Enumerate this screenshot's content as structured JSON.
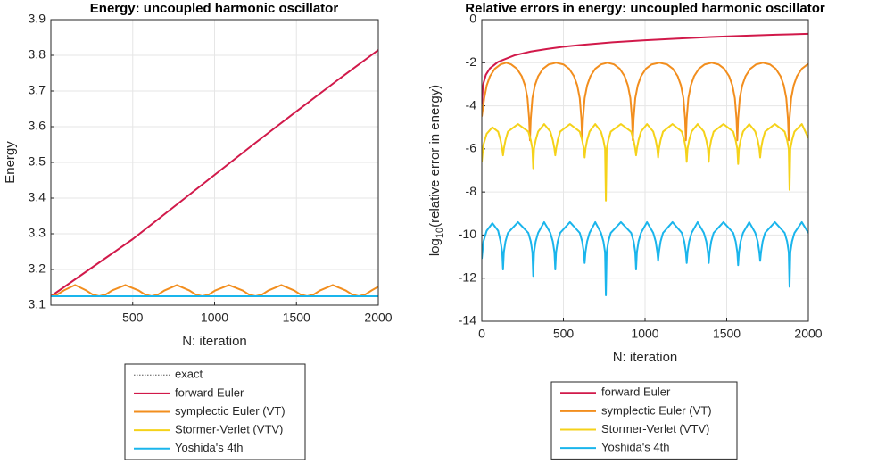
{
  "chart_data": [
    {
      "type": "line",
      "title": "Energy: uncoupled harmonic oscillator",
      "xlabel": "N: iteration",
      "ylabel": "Energy",
      "xlim": [
        0,
        2000
      ],
      "xticks": [
        500,
        1000,
        1500,
        2000
      ],
      "ylim": [
        3.1,
        3.9
      ],
      "yticks": [
        3.1,
        3.2,
        3.3,
        3.4,
        3.5,
        3.6,
        3.7,
        3.8,
        3.9
      ],
      "grid": true,
      "series": [
        {
          "name": "exact",
          "color": "#555555",
          "linestyle": "dotted",
          "x": [
            0,
            2000
          ],
          "values": [
            3.125,
            3.125
          ]
        },
        {
          "name": "forward Euler",
          "color": "#d1194a",
          "x": [
            0,
            250,
            500,
            750,
            1000,
            1250,
            1500,
            1750,
            2000
          ],
          "values": [
            3.125,
            3.205,
            3.285,
            3.375,
            3.465,
            3.555,
            3.643,
            3.73,
            3.815
          ]
        },
        {
          "name": "symplectic Euler (VT)",
          "color": "#f28e1e",
          "x": [
            0,
            40,
            80,
            148,
            215,
            255,
            295,
            335,
            375,
            455,
            535,
            575,
            615,
            655,
            695,
            770,
            845,
            885,
            925,
            965,
            1005,
            1088,
            1170,
            1210,
            1250,
            1290,
            1330,
            1408,
            1485,
            1525,
            1565,
            1605,
            1645,
            1722,
            1800,
            1840,
            1880,
            1920,
            1960,
            2000
          ],
          "values": [
            3.125,
            3.1298,
            3.1415,
            3.1565,
            3.1415,
            3.1298,
            3.125,
            3.1298,
            3.1415,
            3.1565,
            3.1415,
            3.1298,
            3.125,
            3.1298,
            3.1415,
            3.1565,
            3.1415,
            3.1298,
            3.125,
            3.1298,
            3.1415,
            3.1565,
            3.1415,
            3.1298,
            3.125,
            3.1298,
            3.1415,
            3.1565,
            3.1415,
            3.1298,
            3.125,
            3.1298,
            3.1415,
            3.1565,
            3.1415,
            3.1298,
            3.125,
            3.1298,
            3.1415,
            3.152
          ]
        },
        {
          "name": "Stormer-Verlet (VTV)",
          "color": "#f5d21a",
          "x": [
            0,
            2000
          ],
          "values": [
            3.125,
            3.125
          ]
        },
        {
          "name": "Yoshida's 4th",
          "color": "#1ab5ec",
          "x": [
            0,
            2000
          ],
          "values": [
            3.125,
            3.125
          ]
        }
      ]
    },
    {
      "type": "line",
      "title": "Relative errors in energy: uncoupled harmonic oscillator",
      "xlabel": "N: iteration",
      "ylabel": [
        "log",
        "10",
        "(relative error in energy)"
      ],
      "xlim": [
        0,
        2000
      ],
      "xticks": [
        0,
        500,
        1000,
        1500,
        2000
      ],
      "ylim": [
        -14,
        0
      ],
      "yticks": [
        -14,
        -12,
        -10,
        -8,
        -6,
        -4,
        -2,
        0
      ],
      "grid": true,
      "series": [
        {
          "name": "forward Euler",
          "color": "#d1194a",
          "x": [
            1,
            5,
            10,
            25,
            50,
            100,
            200,
            300,
            400,
            500,
            600,
            800,
            1000,
            1200,
            1400,
            1600,
            1800,
            2000
          ],
          "values": [
            -3.96,
            -3.26,
            -2.96,
            -2.56,
            -2.26,
            -1.96,
            -1.66,
            -1.48,
            -1.36,
            -1.26,
            -1.18,
            -1.05,
            -0.96,
            -0.88,
            -0.81,
            -0.75,
            -0.7,
            -0.66
          ]
        },
        {
          "name": "symplectic Euler (VT)",
          "color": "#f28e1e",
          "x": [
            0,
            15,
            30,
            50,
            80,
            115,
            150,
            180,
            215,
            245,
            265,
            280,
            290,
            295,
            300,
            310,
            325,
            345,
            375,
            410,
            455,
            500,
            535,
            565,
            585,
            600,
            610,
            615,
            620,
            630,
            645,
            665,
            695,
            730,
            770,
            810,
            845,
            875,
            895,
            910,
            920,
            925,
            930,
            940,
            955,
            975,
            1005,
            1040,
            1088,
            1135,
            1170,
            1200,
            1220,
            1235,
            1245,
            1250,
            1255,
            1265,
            1280,
            1300,
            1330,
            1365,
            1408,
            1450,
            1485,
            1515,
            1535,
            1550,
            1560,
            1565,
            1570,
            1580,
            1595,
            1615,
            1645,
            1680,
            1722,
            1765,
            1800,
            1830,
            1850,
            1865,
            1875,
            1880,
            1885,
            1895,
            1910,
            1930,
            1960,
            1995,
            2000
          ],
          "values": [
            -4.5,
            -3.65,
            -3.06,
            -2.63,
            -2.28,
            -2.08,
            -2.0,
            -2.08,
            -2.28,
            -2.63,
            -3.06,
            -3.65,
            -4.6,
            -5.6,
            -4.6,
            -3.65,
            -3.06,
            -2.63,
            -2.28,
            -2.08,
            -2.0,
            -2.08,
            -2.28,
            -2.63,
            -3.06,
            -3.65,
            -4.6,
            -5.6,
            -4.6,
            -3.65,
            -3.06,
            -2.63,
            -2.28,
            -2.08,
            -2.0,
            -2.08,
            -2.28,
            -2.63,
            -3.06,
            -3.65,
            -4.6,
            -5.6,
            -4.6,
            -3.65,
            -3.06,
            -2.63,
            -2.28,
            -2.08,
            -2.0,
            -2.08,
            -2.28,
            -2.63,
            -3.06,
            -3.65,
            -4.6,
            -5.6,
            -4.6,
            -3.65,
            -3.06,
            -2.63,
            -2.28,
            -2.08,
            -2.0,
            -2.08,
            -2.28,
            -2.63,
            -3.06,
            -3.65,
            -4.6,
            -5.6,
            -4.6,
            -3.65,
            -3.06,
            -2.63,
            -2.28,
            -2.08,
            -2.0,
            -2.08,
            -2.28,
            -2.63,
            -3.06,
            -3.65,
            -4.6,
            -5.6,
            -4.6,
            -3.65,
            -3.06,
            -2.63,
            -2.28,
            -2.08,
            -2.06
          ]
        },
        {
          "name": "Stormer-Verlet (VTV)",
          "color": "#f5d21a",
          "x": [
            0,
            10,
            30,
            65,
            100,
            115,
            125,
            130,
            135,
            145,
            160,
            222,
            285,
            300,
            310,
            315,
            320,
            330,
            345,
            382,
            420,
            435,
            445,
            450,
            455,
            465,
            480,
            540,
            600,
            615,
            625,
            630,
            635,
            645,
            660,
            695,
            730,
            745,
            755,
            760,
            765,
            775,
            790,
            852,
            915,
            930,
            940,
            945,
            950,
            960,
            975,
            1012,
            1050,
            1065,
            1075,
            1080,
            1085,
            1095,
            1110,
            1168,
            1225,
            1240,
            1250,
            1255,
            1260,
            1270,
            1285,
            1322,
            1360,
            1375,
            1385,
            1390,
            1395,
            1405,
            1420,
            1480,
            1540,
            1555,
            1565,
            1570,
            1575,
            1585,
            1600,
            1638,
            1675,
            1690,
            1700,
            1705,
            1710,
            1720,
            1735,
            1795,
            1855,
            1870,
            1880,
            1885,
            1890,
            1900,
            1915,
            1960,
            2000
          ],
          "values": [
            -6.6,
            -5.8,
            -5.3,
            -5.0,
            -5.2,
            -5.6,
            -6.0,
            -6.3,
            -6.0,
            -5.6,
            -5.2,
            -4.85,
            -5.2,
            -5.6,
            -6.0,
            -6.9,
            -6.0,
            -5.6,
            -5.2,
            -4.85,
            -5.2,
            -5.6,
            -6.0,
            -6.3,
            -6.0,
            -5.6,
            -5.2,
            -4.85,
            -5.2,
            -5.6,
            -6.0,
            -6.4,
            -6.0,
            -5.6,
            -5.2,
            -4.85,
            -5.2,
            -5.6,
            -6.0,
            -8.4,
            -6.0,
            -5.6,
            -5.2,
            -4.85,
            -5.2,
            -5.6,
            -6.0,
            -6.3,
            -6.0,
            -5.6,
            -5.2,
            -4.85,
            -5.2,
            -5.6,
            -6.0,
            -6.4,
            -6.0,
            -5.6,
            -5.2,
            -4.85,
            -5.2,
            -5.6,
            -6.0,
            -6.6,
            -6.0,
            -5.6,
            -5.2,
            -4.85,
            -5.2,
            -5.6,
            -6.0,
            -6.6,
            -6.0,
            -5.6,
            -5.2,
            -4.85,
            -5.2,
            -5.6,
            -6.0,
            -6.7,
            -6.0,
            -5.6,
            -5.2,
            -4.85,
            -5.2,
            -5.6,
            -6.0,
            -6.4,
            -6.0,
            -5.6,
            -5.2,
            -4.85,
            -5.2,
            -5.6,
            -6.0,
            -7.9,
            -6.0,
            -5.6,
            -5.2,
            -4.85,
            -5.5
          ]
        },
        {
          "name": "Yoshida's 4th",
          "color": "#1ab5ec",
          "x": [
            0,
            10,
            30,
            65,
            100,
            115,
            125,
            130,
            135,
            145,
            160,
            222,
            285,
            300,
            310,
            315,
            320,
            330,
            345,
            382,
            420,
            435,
            445,
            450,
            455,
            465,
            480,
            540,
            600,
            615,
            625,
            630,
            635,
            645,
            660,
            695,
            730,
            745,
            755,
            760,
            765,
            775,
            790,
            852,
            915,
            930,
            940,
            945,
            950,
            960,
            975,
            1012,
            1050,
            1065,
            1075,
            1080,
            1085,
            1095,
            1110,
            1168,
            1225,
            1240,
            1250,
            1255,
            1260,
            1270,
            1285,
            1322,
            1360,
            1375,
            1385,
            1390,
            1395,
            1405,
            1420,
            1480,
            1540,
            1555,
            1565,
            1570,
            1575,
            1585,
            1600,
            1638,
            1675,
            1690,
            1700,
            1705,
            1710,
            1720,
            1735,
            1795,
            1855,
            1870,
            1880,
            1885,
            1890,
            1900,
            1915,
            1960,
            2000
          ],
          "values": [
            -11.1,
            -10.3,
            -9.8,
            -9.45,
            -9.8,
            -10.3,
            -10.8,
            -11.6,
            -10.8,
            -10.3,
            -9.9,
            -9.4,
            -9.9,
            -10.3,
            -10.8,
            -11.9,
            -10.8,
            -10.3,
            -9.9,
            -9.4,
            -9.9,
            -10.3,
            -10.8,
            -11.6,
            -10.8,
            -10.3,
            -9.9,
            -9.4,
            -9.9,
            -10.3,
            -10.8,
            -11.3,
            -10.8,
            -10.3,
            -9.9,
            -9.4,
            -9.9,
            -10.3,
            -10.8,
            -12.8,
            -10.8,
            -10.3,
            -9.9,
            -9.4,
            -9.9,
            -10.3,
            -10.8,
            -11.6,
            -10.8,
            -10.3,
            -9.9,
            -9.4,
            -9.9,
            -10.3,
            -10.8,
            -11.2,
            -10.8,
            -10.3,
            -9.9,
            -9.4,
            -9.9,
            -10.3,
            -10.8,
            -11.3,
            -10.8,
            -10.3,
            -9.9,
            -9.4,
            -9.9,
            -10.3,
            -10.8,
            -11.3,
            -10.8,
            -10.3,
            -9.9,
            -9.4,
            -9.9,
            -10.3,
            -10.8,
            -11.4,
            -10.8,
            -10.3,
            -9.9,
            -9.4,
            -9.9,
            -10.3,
            -10.8,
            -11.2,
            -10.8,
            -10.3,
            -9.9,
            -9.4,
            -9.9,
            -10.3,
            -10.8,
            -12.4,
            -10.8,
            -10.3,
            -9.9,
            -9.4,
            -9.9
          ]
        }
      ]
    }
  ]
}
